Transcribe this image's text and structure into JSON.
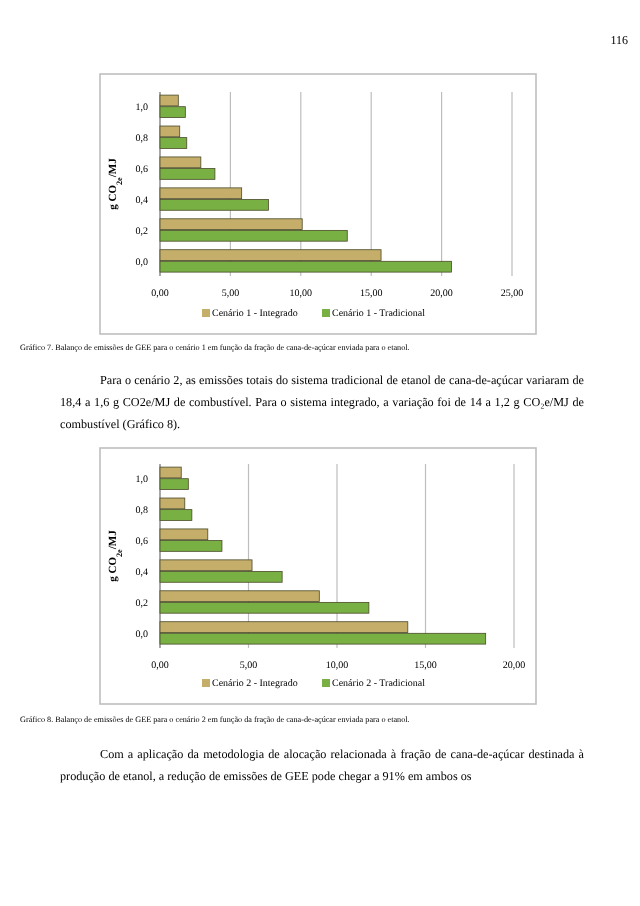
{
  "chart_data": [
    {
      "type": "bar",
      "orientation": "horizontal",
      "ylabel": "g CO$_{2e}$/MJ",
      "categories": [
        "1,0",
        "0,8",
        "0,6",
        "0,4",
        "0,2",
        "0,0"
      ],
      "series": [
        {
          "name": "Cenário 1 - Integrado",
          "color": "#c4ae6a",
          "values": [
            1.3,
            1.4,
            2.9,
            5.8,
            10.1,
            15.7
          ]
        },
        {
          "name": "Cenário 1 - Tradicional",
          "color": "#78b043",
          "values": [
            1.8,
            1.9,
            3.9,
            7.7,
            13.3,
            20.7
          ]
        }
      ],
      "xlim": [
        0,
        25
      ],
      "xticks": [
        {
          "value": 0,
          "label": "0,00"
        },
        {
          "value": 5,
          "label": "5,00"
        },
        {
          "value": 10,
          "label": "10,00"
        },
        {
          "value": 15,
          "label": "15,00"
        },
        {
          "value": 20,
          "label": "20,00"
        },
        {
          "value": 25,
          "label": "25,00"
        }
      ],
      "grid": "x",
      "legend": "bottom",
      "annotations": [
        "116",
        "Gráfico 7. Balanço de emissões de GEE para o cenário 1 em função da fração de cana-de-açúcar enviada para o etanol.",
        "Para o cenário 2, as emissões totais do sistema tradicional de etanol de cana-de-açúcar variaram de 18,4 a 1,6 g CO2e/MJ de combustível. Para o sistema integrado, a variação foi de 14 a 1,2 g CO₂e/MJ de combustível (Gráfico 8)."
      ]
    },
    {
      "type": "bar",
      "orientation": "horizontal",
      "ylabel": "g CO$_{2e}$/MJ",
      "categories": [
        "1,0",
        "0,8",
        "0,6",
        "0,4",
        "0,2",
        "0,0"
      ],
      "series": [
        {
          "name": "Cenário 2 - Integrado",
          "color": "#c4ae6a",
          "values": [
            1.2,
            1.4,
            2.7,
            5.2,
            9.0,
            14.0
          ]
        },
        {
          "name": "Cenário 2 - Tradicional",
          "color": "#78b043",
          "values": [
            1.6,
            1.8,
            3.5,
            6.9,
            11.8,
            18.4
          ]
        }
      ],
      "xlim": [
        0,
        20
      ],
      "xticks": [
        {
          "value": 0,
          "label": "0,00"
        },
        {
          "value": 5,
          "label": "5,00"
        },
        {
          "value": 10,
          "label": "10,00"
        },
        {
          "value": 15,
          "label": "15,00"
        },
        {
          "value": 20,
          "label": "20,00"
        }
      ],
      "grid": "x",
      "legend": "bottom",
      "annotations": [
        "Gráfico 8. Balanço de emissões de GEE para o cenário 2 em função da fração de cana-de-açúcar enviada para o etanol.",
        "Com a aplicação da metodologia de alocação relacionada à fração de cana-de-açúcar destinada à produção de etanol, a redução de emissões de GEE pode chegar a 91% em ambos os"
      ]
    }
  ]
}
